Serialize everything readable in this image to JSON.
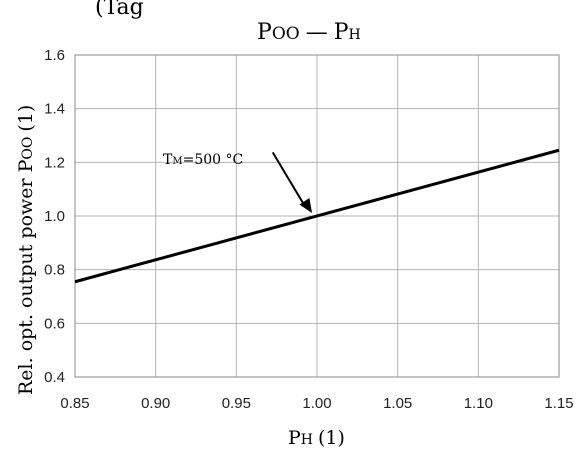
{
  "cutoff_text": "(Tag",
  "chart_data": {
    "type": "line",
    "title": "P",
    "title_sub1": "OO",
    "title_dash": "—",
    "title_sub2": "P",
    "title_sub2_sub": "H",
    "xlabel_main": "P",
    "xlabel_sub": "H",
    "xlabel_unit": "(1)",
    "ylabel": "Rel. opt. output power P",
    "ylabel_sub": "OO",
    "ylabel_unit": "(1)",
    "xlim": [
      0.85,
      1.15
    ],
    "ylim": [
      0.4,
      1.6
    ],
    "x_ticks": [
      "0.85",
      "0.90",
      "0.95",
      "1.00",
      "1.05",
      "1.10",
      "1.15"
    ],
    "y_ticks": [
      "0.4",
      "0.6",
      "0.8",
      "1.0",
      "1.2",
      "1.4",
      "1.6"
    ],
    "grid": true,
    "series": [
      {
        "x": [
          0.85,
          1.15
        ],
        "y": [
          0.755,
          1.245
        ]
      }
    ],
    "annotation": {
      "text_main": "T",
      "text_sub": "M",
      "text_rest": "=500 °C",
      "points_to": [
        1.0,
        1.0
      ]
    }
  }
}
